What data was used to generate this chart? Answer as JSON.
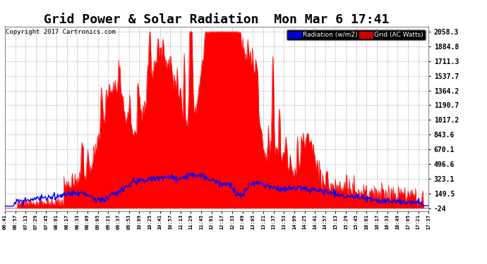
{
  "title": "Grid Power & Solar Radiation  Mon Mar 6 17:41",
  "copyright": "Copyright 2017 Cartronics.com",
  "legend_labels": [
    "Radiation (w/m2)",
    "Grid (AC Watts)"
  ],
  "legend_colors": [
    "#0000ff",
    "#ff0000"
  ],
  "bg_color": "#ffffff",
  "plot_bg_color": "#ffffff",
  "grid_color": "#aaaaaa",
  "yticks": [
    -24.0,
    149.5,
    323.1,
    496.6,
    670.1,
    843.6,
    1017.2,
    1190.7,
    1364.2,
    1537.7,
    1711.3,
    1884.8,
    2058.3
  ],
  "ylim": [
    -60,
    2120
  ],
  "title_fontsize": 13,
  "xtick_labels": [
    "06:41",
    "06:57",
    "07:13",
    "07:29",
    "07:45",
    "08:01",
    "08:17",
    "08:33",
    "08:49",
    "09:05",
    "09:21",
    "09:37",
    "09:53",
    "10:09",
    "10:25",
    "10:41",
    "10:57",
    "11:13",
    "11:29",
    "11:45",
    "12:01",
    "12:17",
    "12:33",
    "12:49",
    "13:05",
    "13:21",
    "13:37",
    "13:53",
    "14:09",
    "14:25",
    "14:41",
    "14:57",
    "15:13",
    "15:29",
    "15:45",
    "16:01",
    "16:17",
    "16:33",
    "16:49",
    "17:05",
    "17:21",
    "17:37"
  ],
  "radiation_color": "#0000ff",
  "grid_ac_color": "#ff0000",
  "legend_bg_blue": "#0000cc",
  "legend_bg_red": "#cc0000"
}
